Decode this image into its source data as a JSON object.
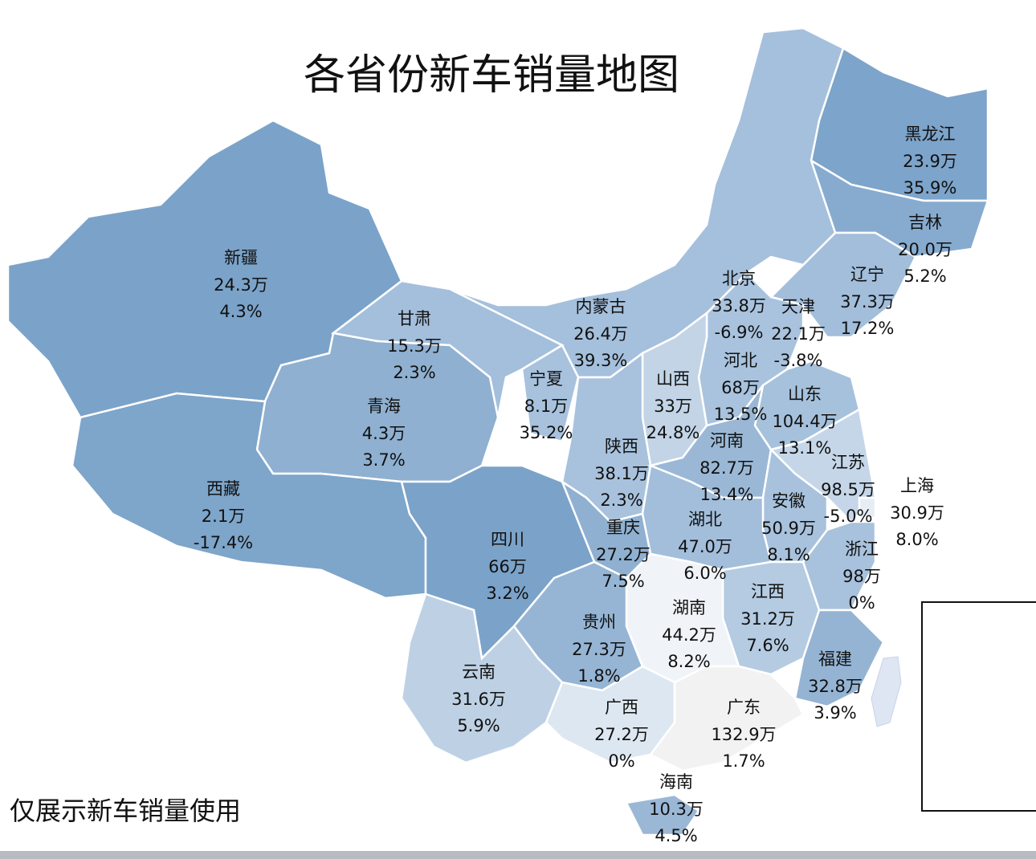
{
  "title": "各省份新车销量地图",
  "note": "仅展示新车销量使用",
  "negative_color": "#e8202a",
  "provinces": [
    {
      "name": "黑龙江",
      "sales": "23.9万",
      "growth": "35.9%",
      "color": "#7da4ca"
    },
    {
      "name": "吉林",
      "sales": "20.0万",
      "growth": "5.2%",
      "color": "#87abcf"
    },
    {
      "name": "辽宁",
      "sales": "37.3万",
      "growth": "17.2%",
      "color": "#a2bedb"
    },
    {
      "name": "北京",
      "sales": "33.8万",
      "growth": "-6.9%",
      "color": "#4f7fb0"
    },
    {
      "name": "天津",
      "sales": "22.1万",
      "growth": "-3.8%",
      "color": "#ffffff"
    },
    {
      "name": "河北",
      "sales": "68万",
      "growth": "13.5%",
      "color": "#a9c3de"
    },
    {
      "name": "山东",
      "sales": "104.4万",
      "growth": "13.1%",
      "color": "#a6c1dc"
    },
    {
      "name": "内蒙古",
      "sales": "26.4万",
      "growth": "39.3%",
      "color": "#a5c0dc"
    },
    {
      "name": "新疆",
      "sales": "24.3万",
      "growth": "4.3%",
      "color": "#7ba3c9"
    },
    {
      "name": "甘肃",
      "sales": "15.3万",
      "growth": "2.3%",
      "color": "#a3bfdb"
    },
    {
      "name": "宁夏",
      "sales": "8.1万",
      "growth": "35.2%",
      "color": "#a8c2dd"
    },
    {
      "name": "山西",
      "sales": "33万",
      "growth": "24.8%",
      "color": "#c2d4e6"
    },
    {
      "name": "青海",
      "sales": "4.3万",
      "growth": "3.7%",
      "color": "#8fb0d0"
    },
    {
      "name": "西藏",
      "sales": "2.1万",
      "growth": "-17.4%",
      "color": "#7ea5ca"
    },
    {
      "name": "陕西",
      "sales": "38.1万",
      "growth": "2.3%",
      "color": "#a8c2dd"
    },
    {
      "name": "河南",
      "sales": "82.7万",
      "growth": "13.4%",
      "color": "#9ab8d6"
    },
    {
      "name": "江苏",
      "sales": "98.5万",
      "growth": "-5.0%",
      "color": "#c5d6e8"
    },
    {
      "name": "上海",
      "sales": "30.9万",
      "growth": "8.0%",
      "color": "#e6edf5"
    },
    {
      "name": "安徽",
      "sales": "50.9万",
      "growth": "8.1%",
      "color": "#a8c2dd"
    },
    {
      "name": "湖北",
      "sales": "47.0万",
      "growth": "6.0%",
      "color": "#a2bedb"
    },
    {
      "name": "四川",
      "sales": "66万",
      "growth": "3.2%",
      "color": "#7ba3c9"
    },
    {
      "name": "重庆",
      "sales": "27.2万",
      "growth": "7.5%",
      "color": "#8fb0d0"
    },
    {
      "name": "浙江",
      "sales": "98万",
      "growth": "0%",
      "color": "#a8c2dd"
    },
    {
      "name": "江西",
      "sales": "31.2万",
      "growth": "7.6%",
      "color": "#b4cbe2"
    },
    {
      "name": "湖南",
      "sales": "44.2万",
      "growth": "8.2%",
      "color": "#f0f4f9"
    },
    {
      "name": "贵州",
      "sales": "27.3万",
      "growth": "1.8%",
      "color": "#96b5d4"
    },
    {
      "name": "福建",
      "sales": "32.8万",
      "growth": "3.9%",
      "color": "#95b4d4"
    },
    {
      "name": "云南",
      "sales": "31.6万",
      "growth": "5.9%",
      "color": "#bed1e4"
    },
    {
      "name": "广西",
      "sales": "27.2万",
      "growth": "0%",
      "color": "#dde7f1"
    },
    {
      "name": "广东",
      "sales": "132.9万",
      "growth": "1.7%",
      "color": "#f2f2f2"
    },
    {
      "name": "海南",
      "sales": "10.3万",
      "growth": "4.5%",
      "color": "#9ab8d6"
    }
  ]
}
